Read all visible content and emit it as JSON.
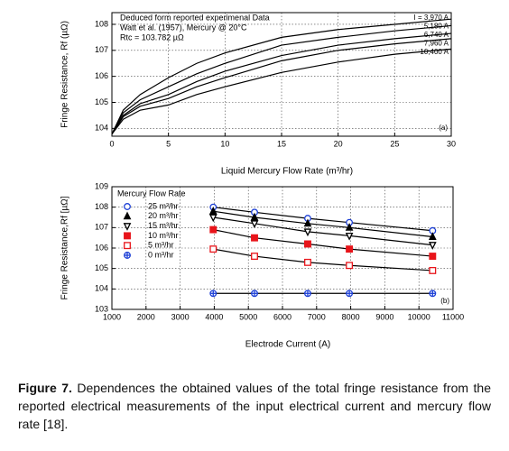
{
  "chart_data": [
    {
      "type": "line",
      "annotations": [
        "Deduced form reported experimenal Data",
        "Watt et al. (1957), Mercury @ 20°C",
        "Rtc = 103.782 µΩ"
      ],
      "panel_label": "(a)",
      "x_label": "Liquid Mercury Flow Rate (m³/hr)",
      "y_label": "Fringe Resistance, Rf (µΩ)",
      "x": [
        0,
        1,
        2.5,
        5,
        7.5,
        10,
        15,
        20,
        25,
        30
      ],
      "series": [
        {
          "name": "I = 3,970 A",
          "color": "#000000",
          "values": [
            103.782,
            104.7,
            105.3,
            105.95,
            106.5,
            106.9,
            107.5,
            107.8,
            108.0,
            108.2
          ]
        },
        {
          "name": "5,180 A",
          "color": "#000000",
          "values": [
            103.782,
            104.6,
            105.1,
            105.6,
            106.1,
            106.5,
            107.2,
            107.5,
            107.75,
            107.95
          ]
        },
        {
          "name": "6,740 A",
          "color": "#000000",
          "values": [
            103.782,
            104.5,
            104.95,
            105.3,
            105.8,
            106.2,
            106.8,
            107.2,
            107.45,
            107.65
          ]
        },
        {
          "name": "7,960 A",
          "color": "#000000",
          "values": [
            103.782,
            104.45,
            104.85,
            105.15,
            105.6,
            105.95,
            106.6,
            107.0,
            107.25,
            107.45
          ]
        },
        {
          "name": "10,400 A",
          "color": "#000000",
          "values": [
            103.782,
            104.35,
            104.7,
            104.9,
            105.3,
            105.6,
            106.15,
            106.55,
            106.85,
            107.05
          ]
        }
      ],
      "xlim": [
        0,
        30
      ],
      "xticks": [
        0,
        5,
        10,
        15,
        20,
        25,
        30
      ],
      "ylim": [
        103.7,
        108.45
      ],
      "yticks": [
        104,
        105,
        106,
        107,
        108
      ],
      "grid": true,
      "legend": "upper right"
    },
    {
      "type": "line",
      "legend_title": "Mercury Flow Rate",
      "panel_label": "(b)",
      "x_label": "Electrode Current (A)",
      "y_label": "Fringe Resistance,Rf [µΩ]",
      "x": [
        3970,
        5180,
        6740,
        7960,
        10400
      ],
      "series": [
        {
          "name": "25 m³/hr",
          "color": "#1c3fd6",
          "marker": "circle",
          "filled": false,
          "values": [
            108.0,
            107.75,
            107.45,
            107.25,
            106.85
          ]
        },
        {
          "name": "20 m³/hr",
          "color": "#000000",
          "marker": "triangle-up",
          "filled": true,
          "values": [
            107.8,
            107.5,
            107.2,
            107.0,
            106.55
          ]
        },
        {
          "name": "15 m³/hr",
          "color": "#000000",
          "marker": "triangle-down",
          "filled": false,
          "values": [
            107.5,
            107.2,
            106.8,
            106.6,
            106.15
          ]
        },
        {
          "name": "10 m³/hr",
          "color": "#e8141a",
          "marker": "square",
          "filled": true,
          "values": [
            106.9,
            106.5,
            106.2,
            105.95,
            105.6
          ]
        },
        {
          "name": "5 m³/hr",
          "color": "#e8141a",
          "marker": "square",
          "filled": false,
          "values": [
            105.95,
            105.6,
            105.3,
            105.15,
            104.9
          ]
        },
        {
          "name": "0 m³/hr",
          "color": "#1c3fd6",
          "marker": "circle-plus",
          "filled": false,
          "values": [
            103.782,
            103.782,
            103.782,
            103.782,
            103.782
          ]
        }
      ],
      "line_color": "#000000",
      "xlim": [
        1000,
        11000
      ],
      "xticks": [
        1000,
        2000,
        3000,
        4000,
        5000,
        6000,
        7000,
        8000,
        9000,
        10000,
        11000
      ],
      "ylim": [
        103,
        109
      ],
      "yticks": [
        103,
        104,
        105,
        106,
        107,
        108,
        109
      ],
      "grid": true,
      "legend": "upper left"
    }
  ],
  "caption": {
    "label": "Figure 7.",
    "text": "Dependences the obtained values of the total fringe resistance from the reported electrical measurements of the input electrical current and mercury flow rate [18]."
  }
}
